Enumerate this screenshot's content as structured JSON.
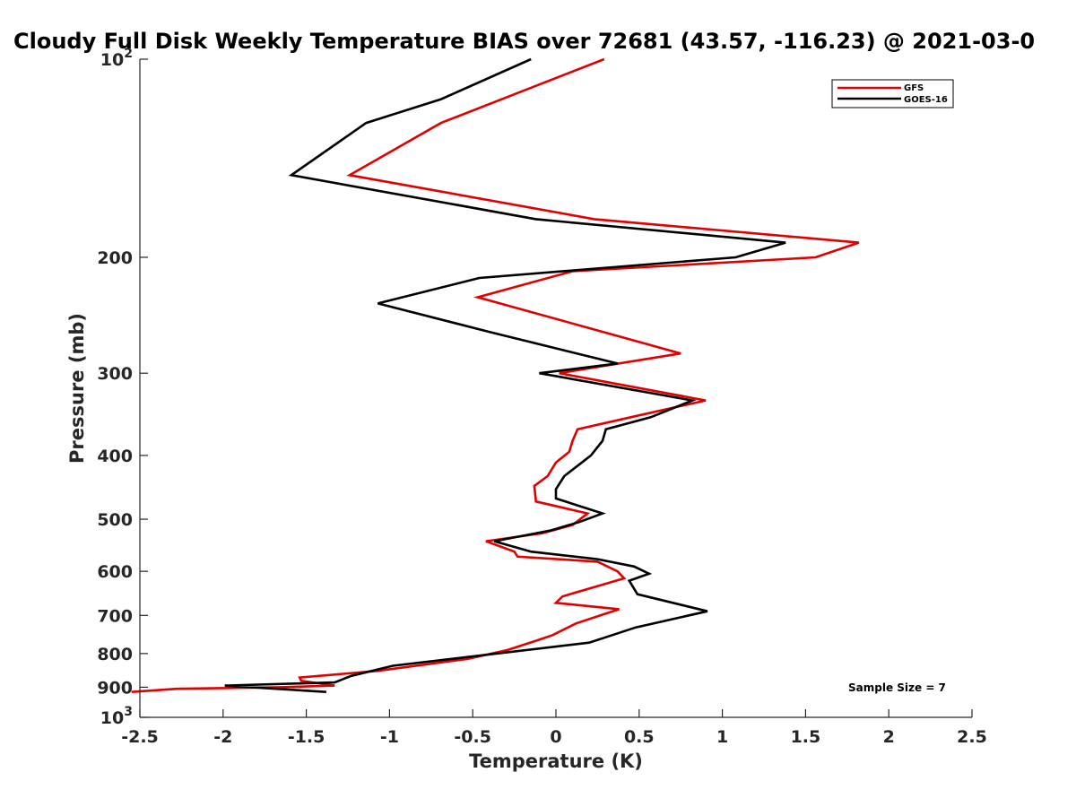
{
  "chart_data": {
    "type": "line",
    "title": "Cloudy Full Disk Weekly Temperature BIAS over 72681 (43.57, -116.23) @ 2021-03-0",
    "xlabel": "Temperature (K)",
    "ylabel": "Pressure (mb)",
    "xlim": [
      -2.5,
      2.5
    ],
    "ylim": [
      100,
      1000
    ],
    "y_scale": "log",
    "y_reversed": true,
    "x_ticks": [
      -2.5,
      -2,
      -1.5,
      -1,
      -0.5,
      0,
      0.5,
      1,
      1.5,
      2,
      2.5
    ],
    "x_tick_labels": [
      "-2.5",
      "-2",
      "-1.5",
      "-1",
      "-0.5",
      "0",
      "0.5",
      "1",
      "1.5",
      "2",
      "2.5"
    ],
    "y_ticks": [
      {
        "value": 100,
        "base": "10",
        "exp": "2"
      },
      {
        "value": 200,
        "label": "200"
      },
      {
        "value": 300,
        "label": "300"
      },
      {
        "value": 400,
        "label": "400"
      },
      {
        "value": 500,
        "label": "500"
      },
      {
        "value": 600,
        "label": "600"
      },
      {
        "value": 700,
        "label": "700"
      },
      {
        "value": 800,
        "label": "800"
      },
      {
        "value": 900,
        "label": "900"
      },
      {
        "value": 1000,
        "base": "10",
        "exp": "3"
      }
    ],
    "grid": false,
    "legend_position": "top-right",
    "annotation": "Sample Size = 7",
    "series": [
      {
        "name": "GFS",
        "color": "#e00000",
        "points": [
          [
            0.29,
            100
          ],
          [
            -0.69,
            125
          ],
          [
            -1.24,
            150
          ],
          [
            0.23,
            175
          ],
          [
            1.82,
            190
          ],
          [
            1.56,
            200
          ],
          [
            0.1,
            210
          ],
          [
            -0.47,
            230
          ],
          [
            0.75,
            280
          ],
          [
            0.02,
            300
          ],
          [
            0.9,
            330
          ],
          [
            0.45,
            350
          ],
          [
            0.13,
            365
          ],
          [
            0.1,
            380
          ],
          [
            0.08,
            395
          ],
          [
            0.0,
            410
          ],
          [
            -0.05,
            430
          ],
          [
            -0.13,
            445
          ],
          [
            -0.12,
            470
          ],
          [
            0.19,
            490
          ],
          [
            0.1,
            510
          ],
          [
            -0.08,
            525
          ],
          [
            -0.42,
            540
          ],
          [
            -0.25,
            560
          ],
          [
            -0.23,
            570
          ],
          [
            0.25,
            580
          ],
          [
            0.37,
            600
          ],
          [
            0.41,
            615
          ],
          [
            0.04,
            655
          ],
          [
            0.0,
            670
          ],
          [
            0.38,
            685
          ],
          [
            0.12,
            720
          ],
          [
            -0.02,
            750
          ],
          [
            -0.12,
            765
          ],
          [
            -0.29,
            790
          ],
          [
            -0.53,
            815
          ],
          [
            -1.07,
            850
          ],
          [
            -1.54,
            870
          ],
          [
            -1.53,
            880
          ],
          [
            -1.33,
            895
          ],
          [
            -1.66,
            900
          ],
          [
            -2.28,
            905
          ],
          [
            -2.55,
            915
          ]
        ]
      },
      {
        "name": "GOES-16",
        "color": "#000000",
        "points": [
          [
            -0.15,
            100
          ],
          [
            -0.69,
            115
          ],
          [
            -1.14,
            125
          ],
          [
            -1.59,
            150
          ],
          [
            -0.12,
            175
          ],
          [
            1.38,
            190
          ],
          [
            1.08,
            200
          ],
          [
            -0.46,
            215
          ],
          [
            -1.07,
            235
          ],
          [
            -0.39,
            260
          ],
          [
            0.37,
            290
          ],
          [
            -0.1,
            300
          ],
          [
            0.82,
            330
          ],
          [
            0.57,
            350
          ],
          [
            0.3,
            365
          ],
          [
            0.28,
            380
          ],
          [
            0.21,
            400
          ],
          [
            0.05,
            430
          ],
          [
            0.0,
            450
          ],
          [
            0.0,
            465
          ],
          [
            0.28,
            490
          ],
          [
            0.14,
            505
          ],
          [
            -0.03,
            520
          ],
          [
            -0.37,
            540
          ],
          [
            -0.15,
            560
          ],
          [
            0.25,
            575
          ],
          [
            0.47,
            590
          ],
          [
            0.56,
            605
          ],
          [
            0.44,
            620
          ],
          [
            0.49,
            650
          ],
          [
            0.91,
            690
          ],
          [
            0.48,
            730
          ],
          [
            0.2,
            770
          ],
          [
            -0.98,
            835
          ],
          [
            -1.23,
            865
          ],
          [
            -1.33,
            885
          ],
          [
            -1.99,
            895
          ],
          [
            -1.38,
            915
          ]
        ]
      }
    ]
  }
}
